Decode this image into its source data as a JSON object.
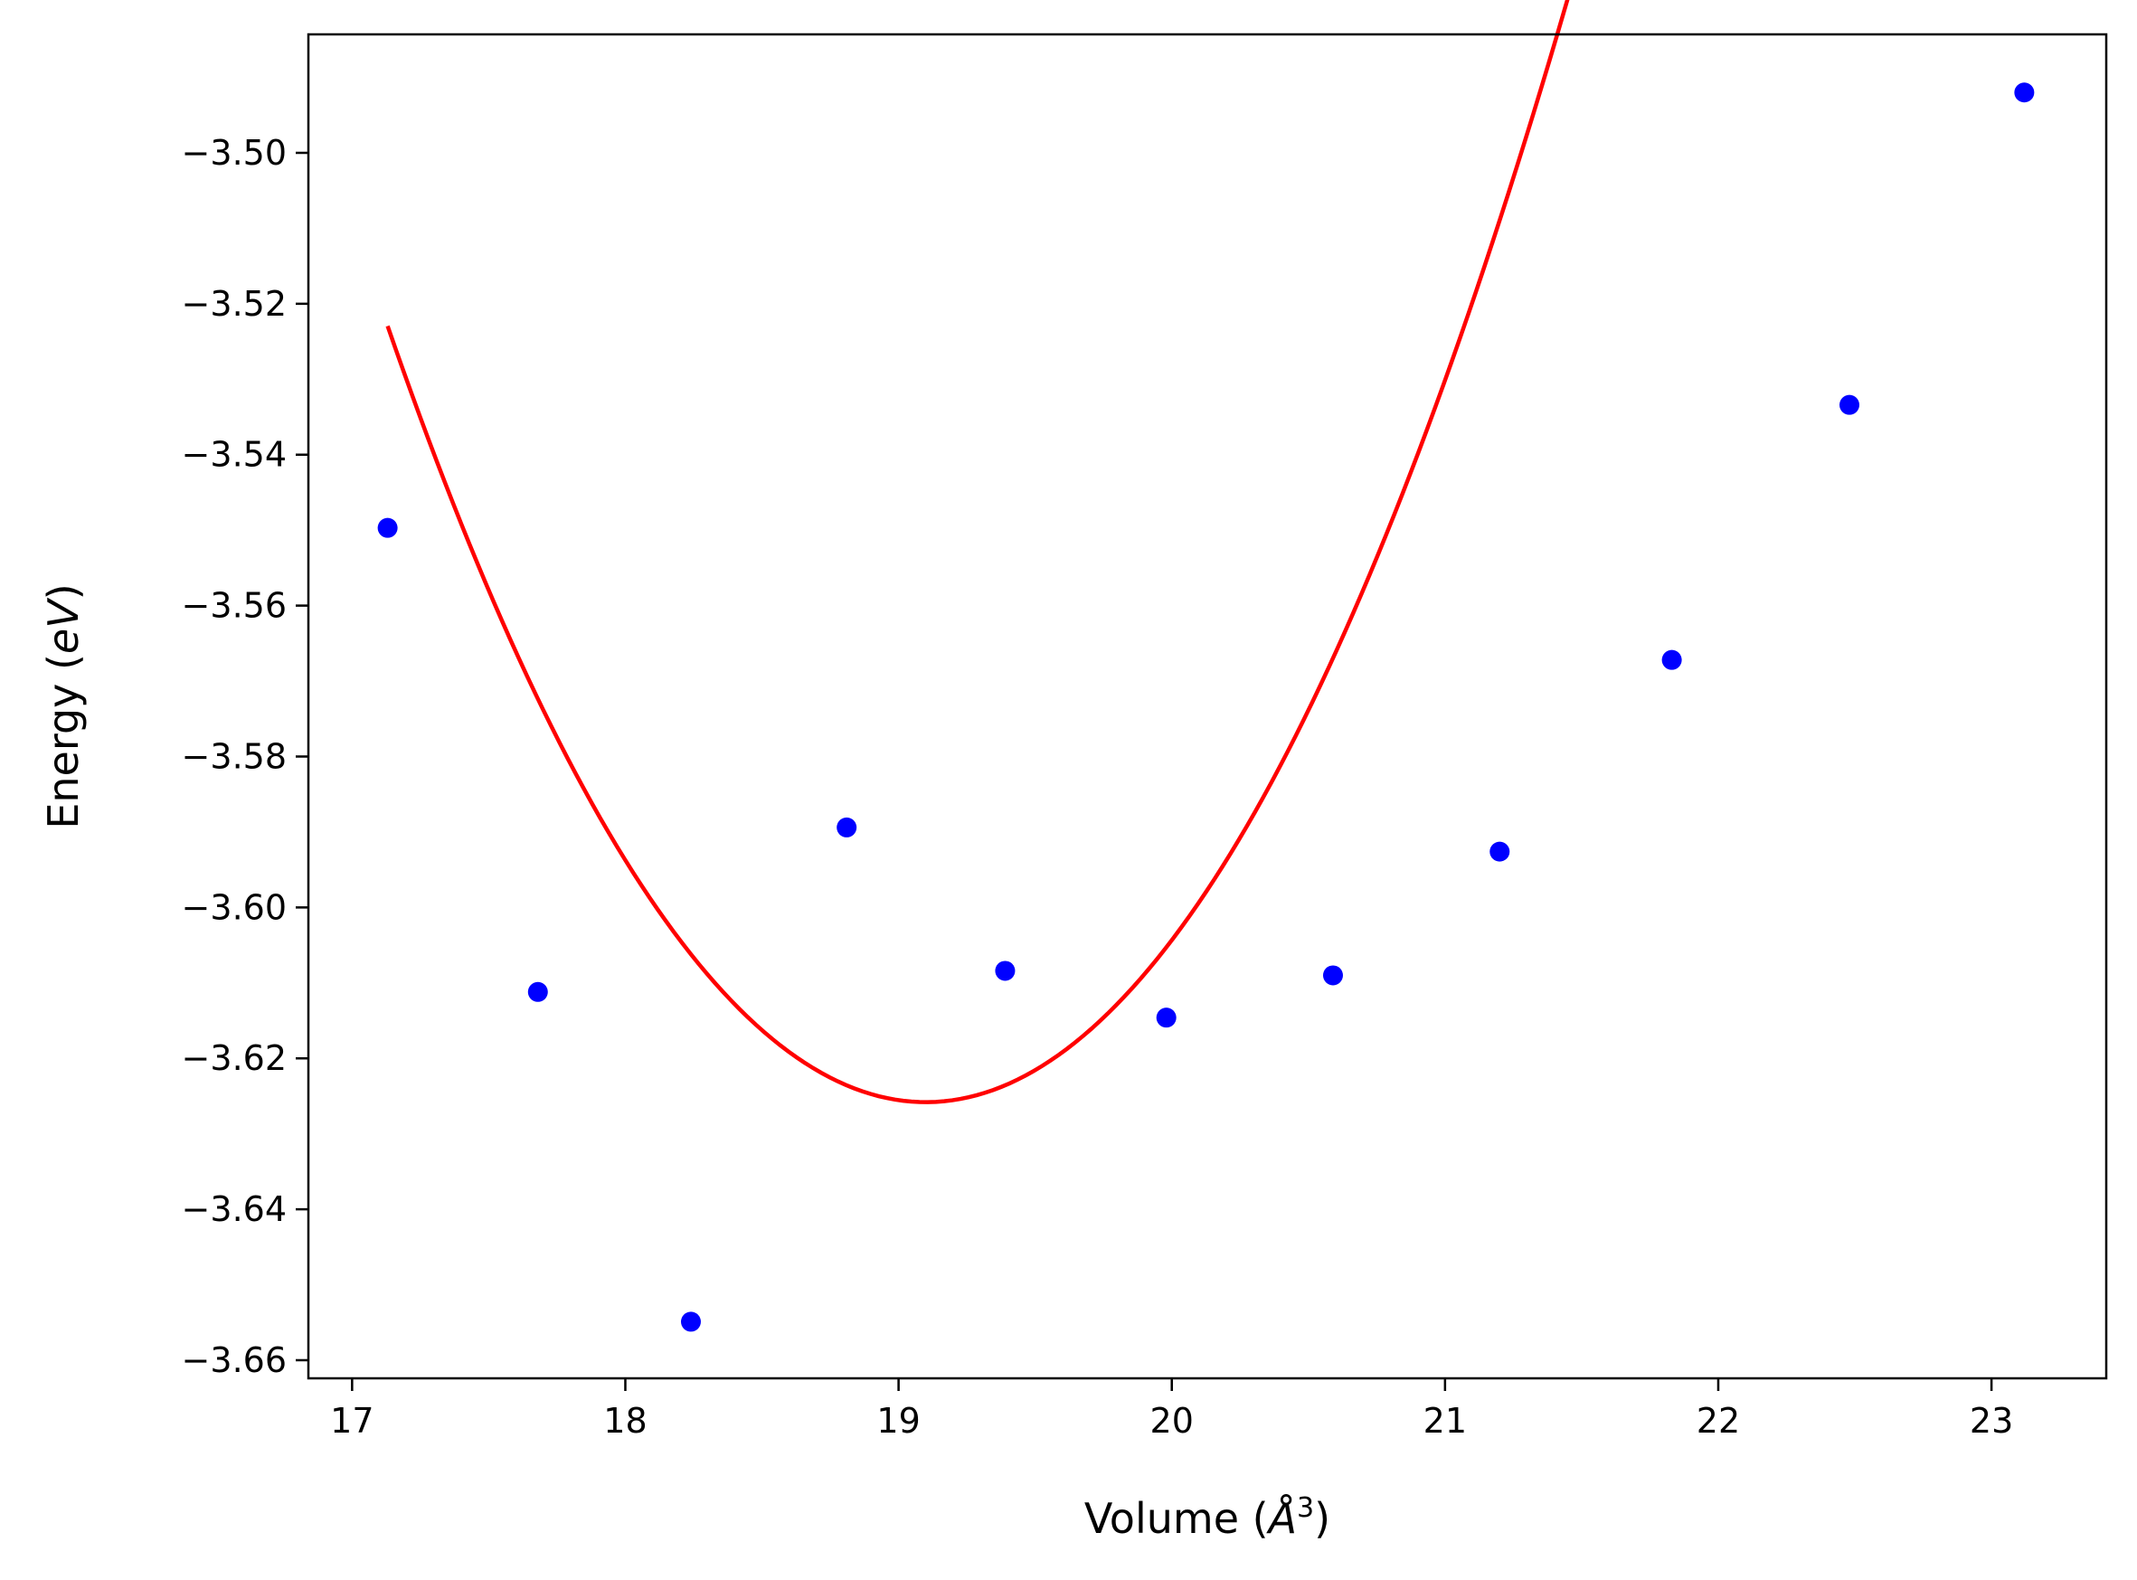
{
  "chart_data": {
    "type": "scatter",
    "title": "",
    "xlabel": "Volume (Å³)",
    "ylabel": "Energy (eV)",
    "xlabel_parts": {
      "pre": "Volume (",
      "var": "Å",
      "sup": "3",
      "post": ")"
    },
    "ylabel_parts": {
      "pre": "Energy (",
      "var": "eV",
      "post": ")"
    },
    "xlim": [
      16.84,
      23.42
    ],
    "ylim": [
      -3.6624,
      -3.4843
    ],
    "grid": false,
    "xticks": [
      17,
      18,
      19,
      20,
      21,
      22,
      23
    ],
    "xtick_labels": [
      "17",
      "18",
      "19",
      "20",
      "21",
      "22",
      "23"
    ],
    "yticks": [
      -3.66,
      -3.64,
      -3.62,
      -3.6,
      -3.58,
      -3.56,
      -3.54,
      -3.52,
      -3.5
    ],
    "ytick_labels": [
      "−3.66",
      "−3.64",
      "−3.62",
      "−3.60",
      "−3.58",
      "−3.56",
      "−3.54",
      "−3.52",
      "−3.50"
    ],
    "series": [
      {
        "type": "scatter",
        "color": "#0000ff",
        "x": [
          17.13,
          17.68,
          18.24,
          18.81,
          19.39,
          19.98,
          20.59,
          21.2,
          21.83,
          22.48,
          23.12
        ],
        "y": [
          -3.5497,
          -3.6112,
          -3.6549,
          -3.5894,
          -3.6084,
          -3.6146,
          -3.609,
          -3.5926,
          -3.5672,
          -3.5334,
          -3.492
        ]
      },
      {
        "type": "line",
        "color": "#ff0000",
        "fit": {
          "kind": "quadratic",
          "vertex_x": 19.1,
          "vertex_y": -3.6258,
          "a": 0.0265
        },
        "x_range": [
          17.13,
          23.12
        ]
      }
    ]
  }
}
